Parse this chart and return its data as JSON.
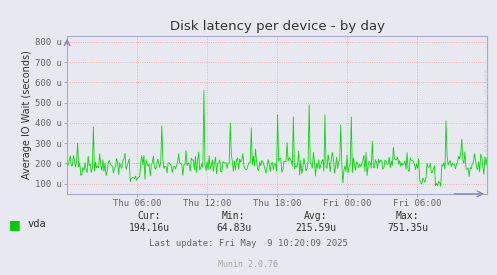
{
  "title": "Disk latency per device - by day",
  "ylabel": "Average IO Wait (seconds)",
  "bg_color": "#e8e8f0",
  "line_color": "#00dd00",
  "grid_color": "#ff9999",
  "ytick_labels": [
    "100 u",
    "200 u",
    "300 u",
    "400 u",
    "500 u",
    "600 u",
    "700 u",
    "800 u"
  ],
  "ytick_values": [
    100,
    200,
    300,
    400,
    500,
    600,
    700,
    800
  ],
  "ymin": 50,
  "ymax": 830,
  "xtick_labels": [
    "Thu 06:00",
    "Thu 12:00",
    "Thu 18:00",
    "Fri 00:00",
    "Fri 06:00"
  ],
  "legend_label": "vda",
  "legend_color": "#00cc00",
  "cur_label": "Cur:",
  "cur_val": "194.16u",
  "min_label": "Min:",
  "min_val": "64.83u",
  "avg_label": "Avg:",
  "avg_val": "215.59u",
  "max_label": "Max:",
  "max_val": "751.35u",
  "last_update": "Last update: Fri May  9 10:20:09 2025",
  "munin_version": "Munin 2.0.76",
  "side_text": "RRDTOOL / TOBI OETIKER",
  "title_color": "#333333",
  "text_color": "#666666",
  "axis_color": "#aaaacc",
  "num_points": 400
}
